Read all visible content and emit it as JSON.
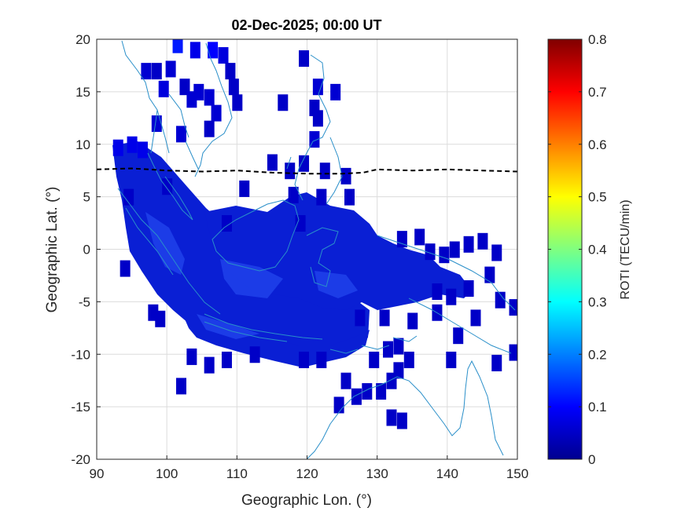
{
  "chart_data": {
    "type": "heatmap",
    "title": "02-Dec-2025; 00:00 UT",
    "xlabel": "Geographic Lon. (°)",
    "ylabel": "Geographic Lat. (°)",
    "colorbar_label": "ROTI (TECU/min)",
    "xlim": [
      90,
      150
    ],
    "ylim": [
      -20,
      20
    ],
    "clim": [
      0,
      0.8
    ],
    "x_ticks": [
      "90",
      "100",
      "110",
      "120",
      "130",
      "140",
      "150"
    ],
    "y_ticks": [
      "20",
      "15",
      "10",
      "5",
      "0",
      "-5",
      "-10",
      "-15",
      "-20"
    ],
    "colorbar_ticks": [
      "0.8",
      "0.7",
      "0.6",
      "0.5",
      "0.4",
      "0.3",
      "0.2",
      "0.1",
      "0"
    ],
    "grid": true,
    "colormap": "jet",
    "coastline_color": "#2a8fc9",
    "equator_line": {
      "style": "dashed",
      "color": "#000000",
      "points": [
        [
          90,
          7.6
        ],
        [
          95,
          7.7
        ],
        [
          100,
          7.5
        ],
        [
          105,
          7.4
        ],
        [
          110,
          7.5
        ],
        [
          115,
          7.3
        ],
        [
          120,
          7.2
        ],
        [
          125,
          7.2
        ],
        [
          128,
          7.3
        ],
        [
          130,
          7.6
        ],
        [
          135,
          7.5
        ],
        [
          140,
          7.6
        ],
        [
          145,
          7.5
        ],
        [
          150,
          7.4
        ]
      ]
    },
    "roti_points": [
      [
        101.5,
        19.5,
        0.12
      ],
      [
        104,
        19,
        0.08
      ],
      [
        106.5,
        19,
        0.1
      ],
      [
        108,
        18.5,
        0.07
      ],
      [
        97,
        17,
        0.06
      ],
      [
        98.5,
        17,
        0.05
      ],
      [
        100.5,
        17.2,
        0.06
      ],
      [
        109,
        17,
        0.05
      ],
      [
        119.5,
        18.2,
        0.05
      ],
      [
        102.5,
        15.5,
        0.05
      ],
      [
        99.5,
        15.3,
        0.07
      ],
      [
        109.5,
        15.5,
        0.05
      ],
      [
        104.5,
        15,
        0.06
      ],
      [
        106,
        14.5,
        0.06
      ],
      [
        103.5,
        14.3,
        0.06
      ],
      [
        110,
        14,
        0.05
      ],
      [
        116.5,
        14,
        0.05
      ],
      [
        121.5,
        15.5,
        0.06
      ],
      [
        124,
        15,
        0.06
      ],
      [
        121,
        13.5,
        0.05
      ],
      [
        107,
        13,
        0.06
      ],
      [
        121.5,
        12.5,
        0.05
      ],
      [
        98.5,
        12,
        0.06
      ],
      [
        102,
        11,
        0.06
      ],
      [
        106,
        11.5,
        0.05
      ],
      [
        121,
        10.5,
        0.06
      ],
      [
        93,
        9.7,
        0.08
      ],
      [
        95,
        10,
        0.08
      ],
      [
        96.5,
        9.5,
        0.08
      ],
      [
        115,
        8.3,
        0.05
      ],
      [
        119.5,
        8.2,
        0.05
      ],
      [
        122.5,
        7.5,
        0.05
      ],
      [
        117.5,
        7.5,
        0.05
      ],
      [
        125.5,
        7,
        0.05
      ],
      [
        100,
        6,
        0.05
      ],
      [
        111,
        5.8,
        0.05
      ],
      [
        118,
        5.2,
        0.05
      ],
      [
        122,
        5,
        0.05
      ],
      [
        126,
        5,
        0.05
      ],
      [
        94.5,
        5,
        0.05
      ],
      [
        108.5,
        2.5,
        0.05
      ],
      [
        119,
        2.5,
        0.05
      ],
      [
        133.5,
        1,
        0.05
      ],
      [
        136,
        1.2,
        0.05
      ],
      [
        145,
        0.8,
        0.05
      ],
      [
        143,
        0.5,
        0.05
      ],
      [
        147,
        -0.3,
        0.05
      ],
      [
        141,
        0,
        0.05
      ],
      [
        139.5,
        -0.5,
        0.05
      ],
      [
        137.5,
        -0.2,
        0.05
      ],
      [
        94,
        -1.8,
        0.05
      ],
      [
        146,
        -2.4,
        0.05
      ],
      [
        143,
        -3.7,
        0.05
      ],
      [
        138.5,
        -4,
        0.05
      ],
      [
        140.5,
        -4.5,
        0.05
      ],
      [
        147.5,
        -4.8,
        0.05
      ],
      [
        149.5,
        -5.5,
        0.05
      ],
      [
        98,
        -6,
        0.05
      ],
      [
        99,
        -6.6,
        0.05
      ],
      [
        127.5,
        -6.5,
        0.05
      ],
      [
        131,
        -6.5,
        0.05
      ],
      [
        135,
        -6.8,
        0.05
      ],
      [
        138.5,
        -6,
        0.05
      ],
      [
        144,
        -6.5,
        0.05
      ],
      [
        141.5,
        -8.2,
        0.05
      ],
      [
        131.5,
        -9.5,
        0.05
      ],
      [
        133,
        -9.2,
        0.05
      ],
      [
        149.5,
        -9.8,
        0.05
      ],
      [
        103.5,
        -10.2,
        0.05
      ],
      [
        106,
        -11,
        0.05
      ],
      [
        108.5,
        -10.5,
        0.05
      ],
      [
        112.5,
        -10,
        0.05
      ],
      [
        119.5,
        -10.5,
        0.05
      ],
      [
        122,
        -10.5,
        0.05
      ],
      [
        129.5,
        -10.5,
        0.05
      ],
      [
        134.5,
        -10.5,
        0.05
      ],
      [
        140.5,
        -10.5,
        0.05
      ],
      [
        147,
        -10.8,
        0.05
      ],
      [
        102,
        -13,
        0.05
      ],
      [
        125.5,
        -12.5,
        0.05
      ],
      [
        132,
        -12.5,
        0.05
      ],
      [
        133,
        -11.5,
        0.05
      ],
      [
        128.5,
        -13.5,
        0.05
      ],
      [
        127,
        -14,
        0.05
      ],
      [
        124.5,
        -14.8,
        0.05
      ],
      [
        130.5,
        -13.5,
        0.05
      ],
      [
        132,
        -16,
        0.05
      ],
      [
        133.5,
        -16.3,
        0.05
      ]
    ]
  }
}
